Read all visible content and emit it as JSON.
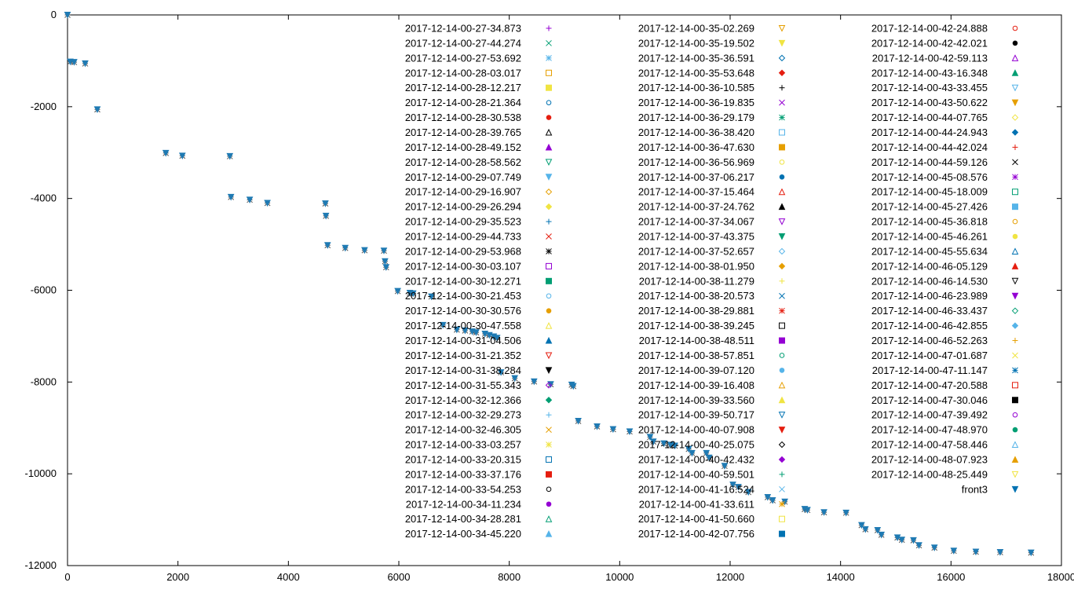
{
  "chart_data": {
    "type": "scatter",
    "title": "",
    "xlabel": "",
    "ylabel": "",
    "xlim": [
      0,
      18000
    ],
    "ylim": [
      -12000,
      0
    ],
    "x_ticks": [
      0,
      2000,
      4000,
      6000,
      8000,
      10000,
      12000,
      14000,
      16000,
      18000
    ],
    "y_ticks": [
      0,
      -2000,
      -4000,
      -6000,
      -8000,
      -10000,
      -12000
    ],
    "grid": false,
    "legend_position": "top-right",
    "legend_columns": 3,
    "legend": [
      {
        "label": "2017-12-14-00-27-34.873",
        "marker": "plus",
        "color": "#9400d3"
      },
      {
        "label": "2017-12-14-00-27-44.274",
        "marker": "cross",
        "color": "#009e73"
      },
      {
        "label": "2017-12-14-00-27-53.692",
        "marker": "star",
        "color": "#56b4e9"
      },
      {
        "label": "2017-12-14-00-28-03.017",
        "marker": "square",
        "color": "#e69f00"
      },
      {
        "label": "2017-12-14-00-28-12.217",
        "marker": "square-filled",
        "color": "#f0e442"
      },
      {
        "label": "2017-12-14-00-28-21.364",
        "marker": "circle",
        "color": "#0072b2"
      },
      {
        "label": "2017-12-14-00-28-30.538",
        "marker": "circle-filled",
        "color": "#e51e10"
      },
      {
        "label": "2017-12-14-00-28-39.765",
        "marker": "triangle-up",
        "color": "#000000"
      },
      {
        "label": "2017-12-14-00-28-49.152",
        "marker": "triangle-up-filled",
        "color": "#9400d3"
      },
      {
        "label": "2017-12-14-00-28-58.562",
        "marker": "triangle-down",
        "color": "#009e73"
      },
      {
        "label": "2017-12-14-00-29-07.749",
        "marker": "triangle-down-filled",
        "color": "#56b4e9"
      },
      {
        "label": "2017-12-14-00-29-16.907",
        "marker": "diamond",
        "color": "#e69f00"
      },
      {
        "label": "2017-12-14-00-29-26.294",
        "marker": "diamond-filled",
        "color": "#f0e442"
      },
      {
        "label": "2017-12-14-00-29-35.523",
        "marker": "plus",
        "color": "#0072b2"
      },
      {
        "label": "2017-12-14-00-29-44.733",
        "marker": "cross",
        "color": "#e51e10"
      },
      {
        "label": "2017-12-14-00-29-53.968",
        "marker": "star",
        "color": "#000000"
      },
      {
        "label": "2017-12-14-00-30-03.107",
        "marker": "square",
        "color": "#9400d3"
      },
      {
        "label": "2017-12-14-00-30-12.271",
        "marker": "square-filled",
        "color": "#009e73"
      },
      {
        "label": "2017-12-14-00-30-21.453",
        "marker": "circle",
        "color": "#56b4e9"
      },
      {
        "label": "2017-12-14-00-30-30.576",
        "marker": "circle-filled",
        "color": "#e69f00"
      },
      {
        "label": "2017-12-14-00-30-47.558",
        "marker": "triangle-up",
        "color": "#f0e442"
      },
      {
        "label": "2017-12-14-00-31-04.506",
        "marker": "triangle-up-filled",
        "color": "#0072b2"
      },
      {
        "label": "2017-12-14-00-31-21.352",
        "marker": "triangle-down",
        "color": "#e51e10"
      },
      {
        "label": "2017-12-14-00-31-38.284",
        "marker": "triangle-down-filled",
        "color": "#000000"
      },
      {
        "label": "2017-12-14-00-31-55.343",
        "marker": "diamond",
        "color": "#9400d3"
      },
      {
        "label": "2017-12-14-00-32-12.366",
        "marker": "diamond-filled",
        "color": "#009e73"
      },
      {
        "label": "2017-12-14-00-32-29.273",
        "marker": "plus",
        "color": "#56b4e9"
      },
      {
        "label": "2017-12-14-00-32-46.305",
        "marker": "cross",
        "color": "#e69f00"
      },
      {
        "label": "2017-12-14-00-33-03.257",
        "marker": "star",
        "color": "#f0e442"
      },
      {
        "label": "2017-12-14-00-33-20.315",
        "marker": "square",
        "color": "#0072b2"
      },
      {
        "label": "2017-12-14-00-33-37.176",
        "marker": "square-filled",
        "color": "#e51e10"
      },
      {
        "label": "2017-12-14-00-33-54.253",
        "marker": "circle",
        "color": "#000000"
      },
      {
        "label": "2017-12-14-00-34-11.234",
        "marker": "circle-filled",
        "color": "#9400d3"
      },
      {
        "label": "2017-12-14-00-34-28.281",
        "marker": "triangle-up",
        "color": "#009e73"
      },
      {
        "label": "2017-12-14-00-34-45.220",
        "marker": "triangle-up-filled",
        "color": "#56b4e9"
      },
      {
        "label": "2017-12-14-00-35-02.269",
        "marker": "triangle-down",
        "color": "#e69f00"
      },
      {
        "label": "2017-12-14-00-35-19.502",
        "marker": "triangle-down-filled",
        "color": "#f0e442"
      },
      {
        "label": "2017-12-14-00-35-36.591",
        "marker": "diamond",
        "color": "#0072b2"
      },
      {
        "label": "2017-12-14-00-35-53.648",
        "marker": "diamond-filled",
        "color": "#e51e10"
      },
      {
        "label": "2017-12-14-00-36-10.585",
        "marker": "plus",
        "color": "#000000"
      },
      {
        "label": "2017-12-14-00-36-19.835",
        "marker": "cross",
        "color": "#9400d3"
      },
      {
        "label": "2017-12-14-00-36-29.179",
        "marker": "star",
        "color": "#009e73"
      },
      {
        "label": "2017-12-14-00-36-38.420",
        "marker": "square",
        "color": "#56b4e9"
      },
      {
        "label": "2017-12-14-00-36-47.630",
        "marker": "square-filled",
        "color": "#e69f00"
      },
      {
        "label": "2017-12-14-00-36-56.969",
        "marker": "circle",
        "color": "#f0e442"
      },
      {
        "label": "2017-12-14-00-37-06.217",
        "marker": "circle-filled",
        "color": "#0072b2"
      },
      {
        "label": "2017-12-14-00-37-15.464",
        "marker": "triangle-up",
        "color": "#e51e10"
      },
      {
        "label": "2017-12-14-00-37-24.762",
        "marker": "triangle-up-filled",
        "color": "#000000"
      },
      {
        "label": "2017-12-14-00-37-34.067",
        "marker": "triangle-down",
        "color": "#9400d3"
      },
      {
        "label": "2017-12-14-00-37-43.375",
        "marker": "triangle-down-filled",
        "color": "#009e73"
      },
      {
        "label": "2017-12-14-00-37-52.657",
        "marker": "diamond",
        "color": "#56b4e9"
      },
      {
        "label": "2017-12-14-00-38-01.950",
        "marker": "diamond-filled",
        "color": "#e69f00"
      },
      {
        "label": "2017-12-14-00-38-11.279",
        "marker": "plus",
        "color": "#f0e442"
      },
      {
        "label": "2017-12-14-00-38-20.573",
        "marker": "cross",
        "color": "#0072b2"
      },
      {
        "label": "2017-12-14-00-38-29.881",
        "marker": "star",
        "color": "#e51e10"
      },
      {
        "label": "2017-12-14-00-38-39.245",
        "marker": "square",
        "color": "#000000"
      },
      {
        "label": "2017-12-14-00-38-48.511",
        "marker": "square-filled",
        "color": "#9400d3"
      },
      {
        "label": "2017-12-14-00-38-57.851",
        "marker": "circle",
        "color": "#009e73"
      },
      {
        "label": "2017-12-14-00-39-07.120",
        "marker": "circle-filled",
        "color": "#56b4e9"
      },
      {
        "label": "2017-12-14-00-39-16.408",
        "marker": "triangle-up",
        "color": "#e69f00"
      },
      {
        "label": "2017-12-14-00-39-33.560",
        "marker": "triangle-up-filled",
        "color": "#f0e442"
      },
      {
        "label": "2017-12-14-00-39-50.717",
        "marker": "triangle-down",
        "color": "#0072b2"
      },
      {
        "label": "2017-12-14-00-40-07.908",
        "marker": "triangle-down-filled",
        "color": "#e51e10"
      },
      {
        "label": "2017-12-14-00-40-25.075",
        "marker": "diamond",
        "color": "#000000"
      },
      {
        "label": "2017-12-14-00-40-42.432",
        "marker": "diamond-filled",
        "color": "#9400d3"
      },
      {
        "label": "2017-12-14-00-40-59.501",
        "marker": "plus",
        "color": "#009e73"
      },
      {
        "label": "2017-12-14-00-41-16.524",
        "marker": "cross",
        "color": "#56b4e9"
      },
      {
        "label": "2017-12-14-00-41-33.611",
        "marker": "star",
        "color": "#e69f00"
      },
      {
        "label": "2017-12-14-00-41-50.660",
        "marker": "square",
        "color": "#f0e442"
      },
      {
        "label": "2017-12-14-00-42-07.756",
        "marker": "square-filled",
        "color": "#0072b2"
      },
      {
        "label": "2017-12-14-00-42-24.888",
        "marker": "circle",
        "color": "#e51e10"
      },
      {
        "label": "2017-12-14-00-42-42.021",
        "marker": "circle-filled",
        "color": "#000000"
      },
      {
        "label": "2017-12-14-00-42-59.113",
        "marker": "triangle-up",
        "color": "#9400d3"
      },
      {
        "label": "2017-12-14-00-43-16.348",
        "marker": "triangle-up-filled",
        "color": "#009e73"
      },
      {
        "label": "2017-12-14-00-43-33.455",
        "marker": "triangle-down",
        "color": "#56b4e9"
      },
      {
        "label": "2017-12-14-00-43-50.622",
        "marker": "triangle-down-filled",
        "color": "#e69f00"
      },
      {
        "label": "2017-12-14-00-44-07.765",
        "marker": "diamond",
        "color": "#f0e442"
      },
      {
        "label": "2017-12-14-00-44-24.943",
        "marker": "diamond-filled",
        "color": "#0072b2"
      },
      {
        "label": "2017-12-14-00-44-42.024",
        "marker": "plus",
        "color": "#e51e10"
      },
      {
        "label": "2017-12-14-00-44-59.126",
        "marker": "cross",
        "color": "#000000"
      },
      {
        "label": "2017-12-14-00-45-08.576",
        "marker": "star",
        "color": "#9400d3"
      },
      {
        "label": "2017-12-14-00-45-18.009",
        "marker": "square",
        "color": "#009e73"
      },
      {
        "label": "2017-12-14-00-45-27.426",
        "marker": "square-filled",
        "color": "#56b4e9"
      },
      {
        "label": "2017-12-14-00-45-36.818",
        "marker": "circle",
        "color": "#e69f00"
      },
      {
        "label": "2017-12-14-00-45-46.261",
        "marker": "circle-filled",
        "color": "#f0e442"
      },
      {
        "label": "2017-12-14-00-45-55.634",
        "marker": "triangle-up",
        "color": "#0072b2"
      },
      {
        "label": "2017-12-14-00-46-05.129",
        "marker": "triangle-up-filled",
        "color": "#e51e10"
      },
      {
        "label": "2017-12-14-00-46-14.530",
        "marker": "triangle-down",
        "color": "#000000"
      },
      {
        "label": "2017-12-14-00-46-23.989",
        "marker": "triangle-down-filled",
        "color": "#9400d3"
      },
      {
        "label": "2017-12-14-00-46-33.437",
        "marker": "diamond",
        "color": "#009e73"
      },
      {
        "label": "2017-12-14-00-46-42.855",
        "marker": "diamond-filled",
        "color": "#56b4e9"
      },
      {
        "label": "2017-12-14-00-46-52.263",
        "marker": "plus",
        "color": "#e69f00"
      },
      {
        "label": "2017-12-14-00-47-01.687",
        "marker": "cross",
        "color": "#f0e442"
      },
      {
        "label": "2017-12-14-00-47-11.147",
        "marker": "star",
        "color": "#0072b2"
      },
      {
        "label": "2017-12-14-00-47-20.588",
        "marker": "square",
        "color": "#e51e10"
      },
      {
        "label": "2017-12-14-00-47-30.046",
        "marker": "square-filled",
        "color": "#000000"
      },
      {
        "label": "2017-12-14-00-47-39.492",
        "marker": "circle",
        "color": "#9400d3"
      },
      {
        "label": "2017-12-14-00-47-48.970",
        "marker": "circle-filled",
        "color": "#009e73"
      },
      {
        "label": "2017-12-14-00-47-58.446",
        "marker": "triangle-up",
        "color": "#56b4e9"
      },
      {
        "label": "2017-12-14-00-48-07.923",
        "marker": "triangle-up-filled",
        "color": "#e69f00"
      },
      {
        "label": "2017-12-14-00-48-25.449",
        "marker": "triangle-down",
        "color": "#f0e442"
      },
      {
        "label": "front3",
        "marker": "triangle-down-filled",
        "color": "#0072b2"
      }
    ],
    "series_points_color": "#1f7ab3",
    "points": [
      [
        0,
        0
      ],
      [
        50,
        -1020
      ],
      [
        120,
        -1030
      ],
      [
        320,
        -1060
      ],
      [
        540,
        -2060
      ],
      [
        1780,
        -3010
      ],
      [
        2080,
        -3070
      ],
      [
        2940,
        -3080
      ],
      [
        2960,
        -3970
      ],
      [
        3300,
        -4030
      ],
      [
        3620,
        -4100
      ],
      [
        4670,
        -4110
      ],
      [
        4680,
        -4380
      ],
      [
        4710,
        -5020
      ],
      [
        5030,
        -5080
      ],
      [
        5380,
        -5130
      ],
      [
        5730,
        -5140
      ],
      [
        5750,
        -5370
      ],
      [
        5770,
        -5500
      ],
      [
        5980,
        -6020
      ],
      [
        6200,
        -6060
      ],
      [
        6260,
        -6070
      ],
      [
        6590,
        -6140
      ],
      [
        6800,
        -6760
      ],
      [
        7050,
        -6860
      ],
      [
        7200,
        -6880
      ],
      [
        7330,
        -6900
      ],
      [
        7400,
        -6920
      ],
      [
        7560,
        -6950
      ],
      [
        7640,
        -6980
      ],
      [
        7720,
        -7010
      ],
      [
        7780,
        -7040
      ],
      [
        7850,
        -7790
      ],
      [
        8100,
        -7920
      ],
      [
        8450,
        -7990
      ],
      [
        8750,
        -8050
      ],
      [
        9130,
        -8060
      ],
      [
        9160,
        -8090
      ],
      [
        9250,
        -8850
      ],
      [
        9590,
        -8970
      ],
      [
        9880,
        -9030
      ],
      [
        10180,
        -9080
      ],
      [
        10550,
        -9200
      ],
      [
        10610,
        -9300
      ],
      [
        10800,
        -9340
      ],
      [
        10920,
        -9370
      ],
      [
        11000,
        -9390
      ],
      [
        11250,
        -9460
      ],
      [
        11310,
        -9550
      ],
      [
        11570,
        -9550
      ],
      [
        11620,
        -9650
      ],
      [
        11900,
        -9830
      ],
      [
        12050,
        -10240
      ],
      [
        12150,
        -10290
      ],
      [
        12330,
        -10400
      ],
      [
        12680,
        -10510
      ],
      [
        12770,
        -10580
      ],
      [
        12990,
        -10610
      ],
      [
        13350,
        -10770
      ],
      [
        13400,
        -10790
      ],
      [
        13700,
        -10840
      ],
      [
        14100,
        -10850
      ],
      [
        14380,
        -11120
      ],
      [
        14450,
        -11210
      ],
      [
        14670,
        -11230
      ],
      [
        14740,
        -11330
      ],
      [
        15030,
        -11390
      ],
      [
        15110,
        -11440
      ],
      [
        15320,
        -11450
      ],
      [
        15420,
        -11560
      ],
      [
        15700,
        -11610
      ],
      [
        16050,
        -11680
      ],
      [
        16450,
        -11700
      ],
      [
        16890,
        -11710
      ],
      [
        17450,
        -11720
      ]
    ]
  }
}
